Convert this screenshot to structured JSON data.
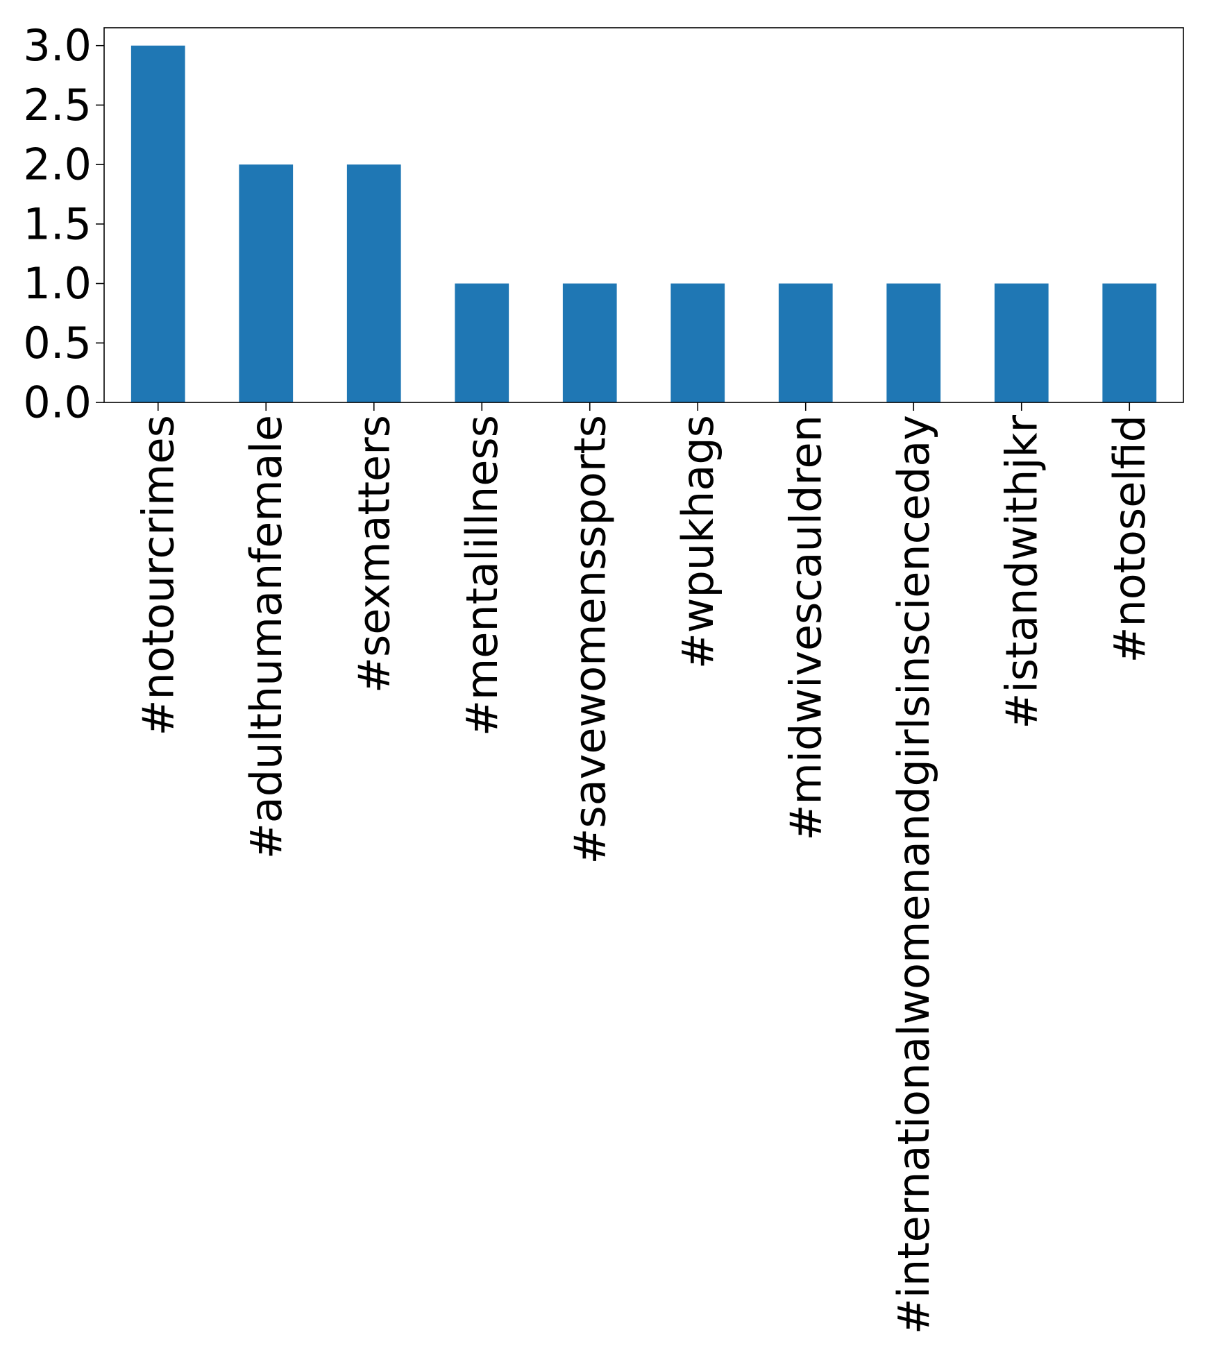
{
  "chart_data": {
    "type": "bar",
    "categories": [
      "#notourcrimes",
      "#adulthumanfemale",
      "#sexmatters",
      "#mentalillness",
      "#savewomenssports",
      "#wpukhags",
      "#midwivescauldren",
      "#internationalwomenandgirlsinscienceday",
      "#istandwithjkr",
      "#notoselfid"
    ],
    "values": [
      3,
      2,
      2,
      1,
      1,
      1,
      1,
      1,
      1,
      1
    ],
    "ylim": [
      0,
      3.15
    ],
    "yticks": [
      0.0,
      0.5,
      1.0,
      1.5,
      2.0,
      2.5,
      3.0
    ],
    "ytick_labels": [
      "0.0",
      "0.5",
      "1.0",
      "1.5",
      "2.0",
      "2.5",
      "3.0"
    ],
    "title": "",
    "xlabel": "",
    "ylabel": "",
    "grid": false,
    "legend": false,
    "bar_color": "#1f77b4"
  }
}
